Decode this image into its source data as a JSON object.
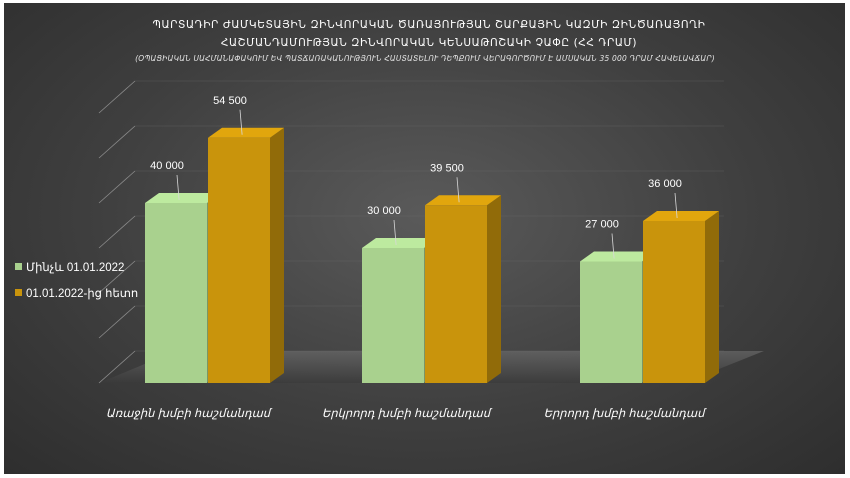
{
  "chart_data": {
    "type": "bar",
    "title_lines": [
      "ՊԱՐՏԱԴԻՐ ԺԱՄԿԵՏԱՅԻՆ ԶԻՆՎՈՐԱԿԱՆ ԾԱՌԱՅՈՒԹՅԱՆ ՇԱՐՔԱՅԻՆ ԿԱԶՄԻ ԶԻՆԾԱՌԱՅՈՂԻ",
      "ՀԱՇՄԱՆԴԱՄՈՒԹՅԱՆ ԶԻՆՎՈՐԱԿԱՆ ԿԵՆՍԱԹՈՇԱԿԻ ՉԱՓԸ (ՀՀ ԴՐԱՄ)"
    ],
    "subtitle": "(ՕՊԱՑԻԱԿԱՆ ՍԱՀՄԱՆԱՓԱԿՈՒՄ ԵՎ ՊԱՏՃԱՌԱԿԱՆՈՒԹՅՈՒՆ ՀԱՍՏԱՏԵԼՈՒ ԴԵՊՔՈՒՄ ՎԵՐԱԳՈՐԾՈՒՄ Է ԱՄՍԱԿԱՆ 35 000 ԴՐԱՄ ՀԱՎԵԼԱՎՃԱՐ)",
    "categories": [
      "Առաջին խմբի հաշմանդամ",
      "Երկրորդ խմբի հաշմանդամ",
      "Երրորդ խմբի հաշմանդամ"
    ],
    "series": [
      {
        "name": "Մինչև 01.01.2022",
        "values": [
          40000,
          30000,
          27000
        ],
        "value_labels": [
          "40 000",
          "30 000",
          "27 000"
        ],
        "color": "#a9d18e"
      },
      {
        "name": "01.01.2022-ից հետո",
        "values": [
          54500,
          39500,
          36000
        ],
        "value_labels": [
          "54 500",
          "39 500",
          "36 000"
        ],
        "color": "#c9940c"
      }
    ],
    "ylim": [
      0,
      60000
    ],
    "grid": true,
    "legend_position": "left"
  }
}
